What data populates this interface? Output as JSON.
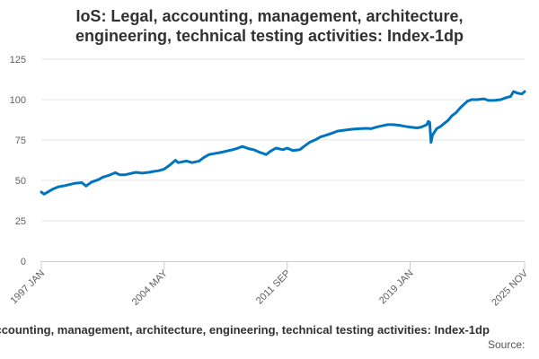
{
  "chart_data": {
    "type": "line",
    "title_lines": [
      "IoS: Legal, accounting, management, architecture,",
      "engineering, technical testing activities: Index-1dp"
    ],
    "xlabel": "",
    "ylabel": "",
    "ylim": [
      0,
      125
    ],
    "y_ticks": [
      "0",
      "25",
      "50",
      "75",
      "100",
      "125"
    ],
    "x_range": [
      "1997 JAN",
      "2025 NOV"
    ],
    "x_tick_labels": [
      "1997 JAN",
      "2004 MAY",
      "2011 SEP",
      "2019 JAN",
      "2025 NOV"
    ],
    "grid": "horizontal",
    "line_color": "#0075bf",
    "legend": "egal, accounting, management, architecture, engineering, technical testing activities: Index-1dp",
    "series": [
      {
        "name": "Legal, accounting, management, architecture, engineering, technical testing activities: Index-1dp",
        "points": [
          [
            "1997-01",
            42.8
          ],
          [
            "1997-03",
            41.5
          ],
          [
            "1997-06",
            43.0
          ],
          [
            "1997-09",
            44.5
          ],
          [
            "1998-01",
            46.0
          ],
          [
            "1998-06",
            46.8
          ],
          [
            "1998-09",
            47.4
          ],
          [
            "1999-01",
            48.2
          ],
          [
            "1999-06",
            48.6
          ],
          [
            "1999-09",
            46.5
          ],
          [
            "2000-01",
            49.0
          ],
          [
            "2000-06",
            50.5
          ],
          [
            "2000-09",
            52.0
          ],
          [
            "2001-01",
            53.0
          ],
          [
            "2001-06",
            54.8
          ],
          [
            "2001-09",
            53.5
          ],
          [
            "2002-01",
            53.5
          ],
          [
            "2002-06",
            54.5
          ],
          [
            "2002-09",
            55.0
          ],
          [
            "2003-01",
            54.5
          ],
          [
            "2003-06",
            55.0
          ],
          [
            "2003-09",
            55.5
          ],
          [
            "2004-01",
            56.0
          ],
          [
            "2004-05",
            57.0
          ],
          [
            "2004-09",
            59.5
          ],
          [
            "2005-01",
            62.5
          ],
          [
            "2005-03",
            61.0
          ],
          [
            "2005-06",
            61.5
          ],
          [
            "2005-09",
            62.0
          ],
          [
            "2006-01",
            61.0
          ],
          [
            "2006-06",
            62.0
          ],
          [
            "2006-09",
            64.0
          ],
          [
            "2007-01",
            66.0
          ],
          [
            "2007-06",
            66.8
          ],
          [
            "2007-09",
            67.2
          ],
          [
            "2008-01",
            68.0
          ],
          [
            "2008-06",
            69.0
          ],
          [
            "2008-09",
            69.8
          ],
          [
            "2009-01",
            71.0
          ],
          [
            "2009-06",
            69.5
          ],
          [
            "2009-09",
            69.0
          ],
          [
            "2010-01",
            67.5
          ],
          [
            "2010-06",
            66.0
          ],
          [
            "2010-09",
            68.0
          ],
          [
            "2011-01",
            70.0
          ],
          [
            "2011-06",
            69.0
          ],
          [
            "2011-09",
            70.0
          ],
          [
            "2012-01",
            68.5
          ],
          [
            "2012-06",
            69.0
          ],
          [
            "2012-09",
            71.0
          ],
          [
            "2013-01",
            73.5
          ],
          [
            "2013-06",
            75.5
          ],
          [
            "2013-09",
            77.0
          ],
          [
            "2014-01",
            78.0
          ],
          [
            "2014-06",
            79.5
          ],
          [
            "2014-09",
            80.5
          ],
          [
            "2015-01",
            81.0
          ],
          [
            "2015-06",
            81.5
          ],
          [
            "2015-09",
            81.8
          ],
          [
            "2016-01",
            82.0
          ],
          [
            "2016-06",
            82.2
          ],
          [
            "2016-09",
            82.0
          ],
          [
            "2017-01",
            83.0
          ],
          [
            "2017-06",
            84.0
          ],
          [
            "2017-09",
            84.5
          ],
          [
            "2018-01",
            84.5
          ],
          [
            "2018-06",
            84.0
          ],
          [
            "2018-09",
            83.5
          ],
          [
            "2019-01",
            83.0
          ],
          [
            "2019-06",
            82.5
          ],
          [
            "2019-09",
            83.0
          ],
          [
            "2020-01",
            84.5
          ],
          [
            "2020-02",
            86.5
          ],
          [
            "2020-03",
            86.0
          ],
          [
            "2020-04",
            73.5
          ],
          [
            "2020-05",
            78.0
          ],
          [
            "2020-08",
            82.0
          ],
          [
            "2020-11",
            83.5
          ],
          [
            "2021-01",
            85.0
          ],
          [
            "2021-04",
            87.0
          ],
          [
            "2021-07",
            90.0
          ],
          [
            "2021-10",
            92.0
          ],
          [
            "2022-01",
            95.0
          ],
          [
            "2022-06",
            99.0
          ],
          [
            "2022-09",
            100.0
          ],
          [
            "2023-01",
            100.0
          ],
          [
            "2023-06",
            100.5
          ],
          [
            "2023-09",
            99.5
          ],
          [
            "2024-01",
            99.5
          ],
          [
            "2024-06",
            100.0
          ],
          [
            "2024-09",
            101.0
          ],
          [
            "2025-01",
            102.0
          ],
          [
            "2025-03",
            105.0
          ],
          [
            "2025-06",
            104.0
          ],
          [
            "2025-09",
            103.5
          ],
          [
            "2025-11",
            105.0
          ]
        ]
      }
    ]
  },
  "source_label": "Source:"
}
